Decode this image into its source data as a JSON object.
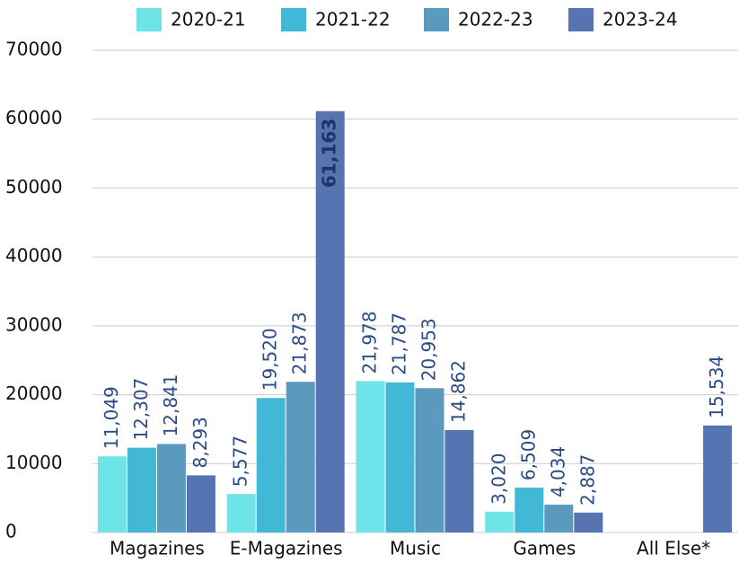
{
  "chart_data": {
    "type": "bar",
    "categories": [
      "Magazines",
      "E-Magazines",
      "Music",
      "Games",
      "All Else*"
    ],
    "series": [
      {
        "name": "2020-21",
        "color": "#6ce4e8",
        "values": [
          11049,
          5577,
          21978,
          3020,
          null
        ],
        "value_labels": [
          "11,049",
          "5,577",
          "21,978",
          "3,020",
          null
        ]
      },
      {
        "name": "2021-22",
        "color": "#41b9d6",
        "values": [
          12307,
          19520,
          21787,
          6509,
          null
        ],
        "value_labels": [
          "12,307",
          "19,520",
          "21,787",
          "6,509",
          null
        ]
      },
      {
        "name": "2022-23",
        "color": "#5a9abf",
        "values": [
          12841,
          21873,
          20953,
          4034,
          null
        ],
        "value_labels": [
          "12,841",
          "21,873",
          "20,953",
          "4,034",
          null
        ]
      },
      {
        "name": "2023-24",
        "color": "#5574b1",
        "values": [
          8293,
          61163,
          14862,
          2887,
          15534
        ],
        "value_labels": [
          "8,293",
          "61,163",
          "14,862",
          "2,887",
          "15,534"
        ]
      }
    ],
    "ylim": [
      0,
      70000
    ],
    "yticks": [
      0,
      10000,
      20000,
      30000,
      40000,
      50000,
      60000,
      70000
    ],
    "grid": true,
    "legend": "top"
  }
}
